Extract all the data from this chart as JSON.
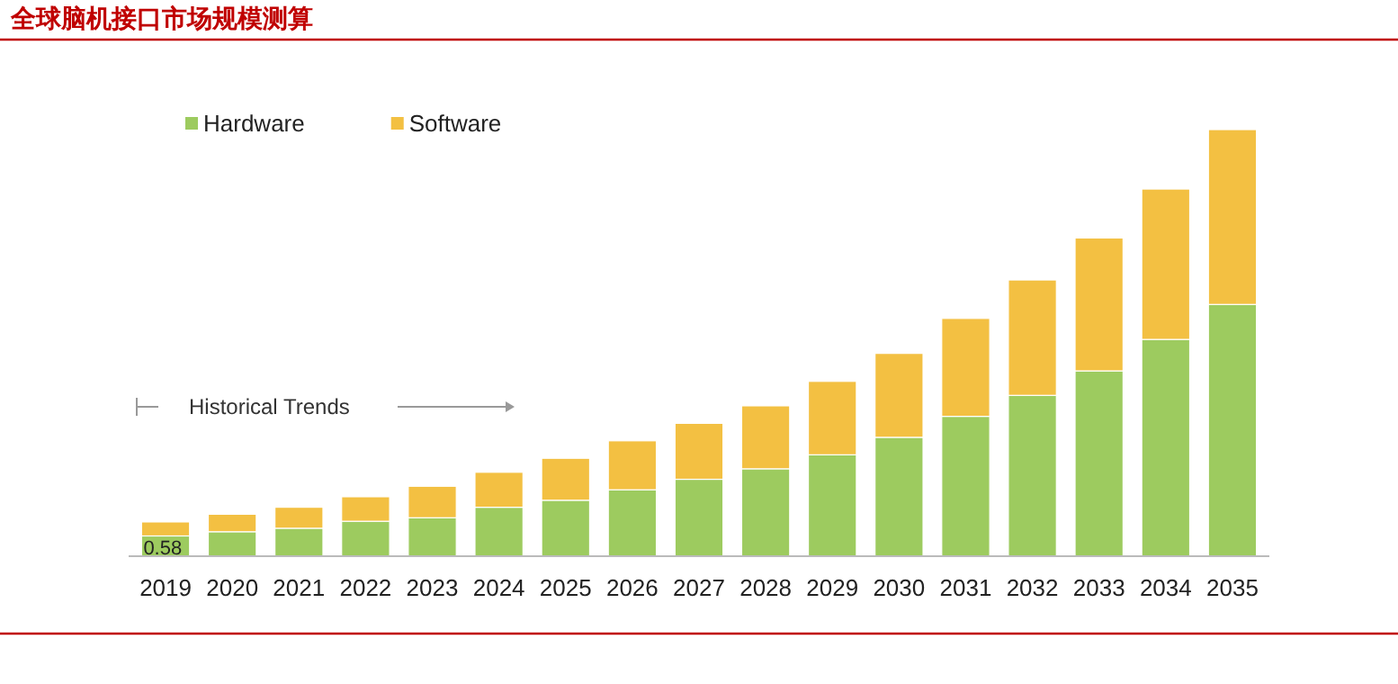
{
  "chart_data": {
    "type": "bar",
    "title": "全球脑机接口市场规模测算",
    "stacked": true,
    "legend": "top left",
    "categories": [
      "2019",
      "2020",
      "2021",
      "2022",
      "2023",
      "2024",
      "2025",
      "2026",
      "2027",
      "2028",
      "2029",
      "2030",
      "2031",
      "2032",
      "2033",
      "2034",
      "2035"
    ],
    "series": [
      {
        "name": "Hardware",
        "color": "#9dcb5f",
        "values": [
          0.58,
          0.7,
          0.8,
          1.0,
          1.1,
          1.4,
          1.6,
          1.9,
          2.2,
          2.5,
          2.9,
          3.4,
          4.0,
          4.6,
          5.3,
          6.2,
          7.2
        ],
        "value_labels": [
          "0.58",
          null,
          null,
          null,
          null,
          null,
          null,
          null,
          null,
          null,
          null,
          null,
          null,
          null,
          null,
          null,
          null
        ]
      },
      {
        "name": "Software",
        "color": "#f3c042",
        "values": [
          0.4,
          0.5,
          0.6,
          0.7,
          0.9,
          1.0,
          1.2,
          1.4,
          1.6,
          1.8,
          2.1,
          2.4,
          2.8,
          3.3,
          3.8,
          4.3,
          5.0
        ]
      }
    ],
    "annotations": [
      "Historical Trends"
    ]
  }
}
